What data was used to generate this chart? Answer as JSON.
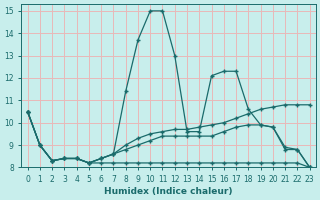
{
  "xlabel": "Humidex (Indice chaleur)",
  "xlim": [
    -0.5,
    23.5
  ],
  "ylim": [
    8,
    15.3
  ],
  "yticks": [
    8,
    9,
    10,
    11,
    12,
    13,
    14,
    15
  ],
  "xticks": [
    0,
    1,
    2,
    3,
    4,
    5,
    6,
    7,
    8,
    9,
    10,
    11,
    12,
    13,
    14,
    15,
    16,
    17,
    18,
    19,
    20,
    21,
    22,
    23
  ],
  "bg_color": "#c8eeec",
  "grid_color": "#e8b8b8",
  "line_color": "#1a6b6b",
  "series": [
    {
      "x": [
        0,
        1,
        2,
        3,
        4,
        5,
        6,
        7,
        8,
        9,
        10,
        11,
        12,
        13,
        14,
        15,
        16,
        17,
        18,
        19,
        20,
        21,
        22,
        23
      ],
      "y": [
        10.5,
        9.0,
        8.3,
        8.4,
        8.4,
        8.2,
        8.2,
        8.2,
        8.2,
        8.2,
        8.2,
        8.2,
        8.2,
        8.2,
        8.2,
        8.2,
        8.2,
        8.2,
        8.2,
        8.2,
        8.2,
        8.2,
        8.2,
        8.0
      ]
    },
    {
      "x": [
        0,
        1,
        2,
        3,
        4,
        5,
        6,
        7,
        8,
        9,
        10,
        11,
        12,
        13,
        14,
        15,
        16,
        17,
        18,
        19,
        20,
        21,
        22,
        23
      ],
      "y": [
        10.5,
        9.0,
        8.3,
        8.4,
        8.4,
        8.2,
        8.4,
        8.6,
        9.0,
        9.3,
        9.5,
        9.6,
        9.7,
        9.7,
        9.8,
        9.9,
        10.0,
        10.2,
        10.4,
        10.6,
        10.7,
        10.8,
        10.8,
        10.8
      ]
    },
    {
      "x": [
        0,
        1,
        2,
        3,
        4,
        5,
        6,
        7,
        8,
        9,
        10,
        11,
        12,
        13,
        14,
        15,
        16,
        17,
        18,
        19,
        20,
        21,
        22,
        23
      ],
      "y": [
        10.5,
        9.0,
        8.3,
        8.4,
        8.4,
        8.2,
        8.4,
        8.6,
        8.8,
        9.0,
        9.2,
        9.4,
        9.4,
        9.4,
        9.4,
        9.4,
        9.6,
        9.8,
        9.9,
        9.9,
        9.8,
        8.9,
        8.8,
        8.0
      ]
    },
    {
      "x": [
        0,
        1,
        2,
        3,
        4,
        5,
        6,
        7,
        8,
        9,
        10,
        11,
        12,
        13,
        14,
        15,
        16,
        17,
        18,
        19,
        20,
        21,
        22,
        23
      ],
      "y": [
        10.5,
        9.0,
        8.3,
        8.4,
        8.4,
        8.2,
        8.4,
        8.6,
        11.4,
        13.7,
        15.0,
        15.0,
        13.0,
        9.6,
        9.6,
        12.1,
        12.3,
        12.3,
        10.6,
        9.9,
        9.8,
        8.8,
        8.8,
        8.0
      ]
    }
  ]
}
